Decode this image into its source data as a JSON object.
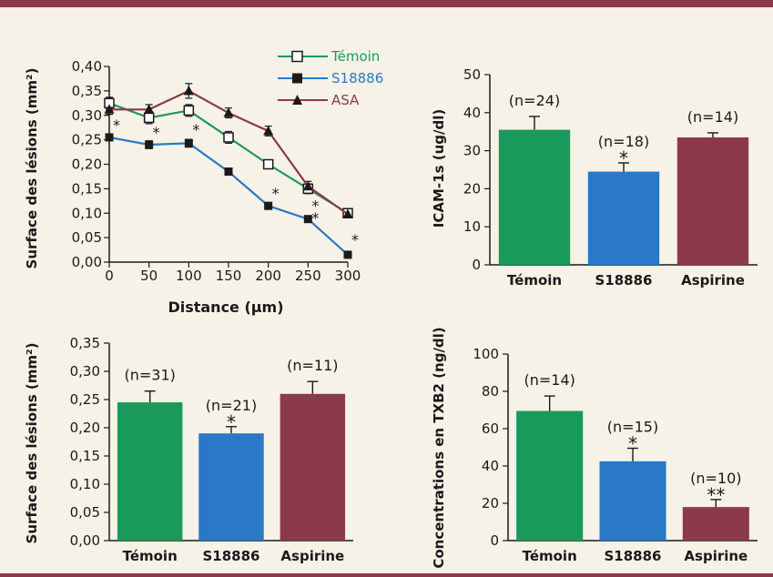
{
  "colors": {
    "background": "#f7f2e7",
    "border": "#8b3a4c",
    "temoin": "#1a9a5a",
    "s18886": "#2a78c8",
    "asa": "#8b3a4c"
  },
  "chart_data": [
    {
      "id": "line",
      "type": "line",
      "title": "",
      "xlabel": "Distance (µm)",
      "ylabel": "Surface des lésions (mm²)",
      "xlim": [
        0,
        300
      ],
      "ylim": [
        0,
        0.4
      ],
      "xticks": [
        "0",
        "50",
        "100",
        "150",
        "200",
        "250",
        "300"
      ],
      "yticks": [
        "0,00",
        "0,05",
        "0,10",
        "0,15",
        "0,20",
        "0,25",
        "0,30",
        "0,35",
        "0,40"
      ],
      "x": [
        0,
        50,
        100,
        150,
        200,
        250,
        300
      ],
      "legend_position": "top-right",
      "series": [
        {
          "name": "Témoin",
          "marker": "open-square",
          "color": "#1a9a5a",
          "values": [
            0.325,
            0.295,
            0.31,
            0.255,
            0.2,
            0.15,
            0.1
          ],
          "err": [
            0.012,
            0.012,
            0.012,
            0.012,
            0.008,
            0.01,
            0.006
          ]
        },
        {
          "name": "S18886",
          "marker": "filled-square",
          "color": "#2a78c8",
          "values": [
            0.255,
            0.24,
            0.243,
            0.185,
            0.115,
            0.088,
            0.015
          ],
          "err": [
            0.006,
            0.008,
            0.008,
            0.006,
            0.006,
            0.003,
            0.003
          ]
        },
        {
          "name": "ASA",
          "marker": "filled-triangle",
          "color": "#8b3a4c",
          "values": [
            0.312,
            0.312,
            0.35,
            0.305,
            0.268,
            0.155,
            0.098
          ],
          "err": [
            0.01,
            0.01,
            0.015,
            0.01,
            0.01,
            0.01,
            0.006
          ]
        }
      ],
      "annotations": [
        {
          "x": 0,
          "y": 0.285,
          "text": "*"
        },
        {
          "x": 50,
          "y": 0.27,
          "text": "*"
        },
        {
          "x": 100,
          "y": 0.275,
          "text": "*"
        },
        {
          "x": 200,
          "y": 0.145,
          "text": "*"
        },
        {
          "x": 250,
          "y": 0.12,
          "text": "*"
        },
        {
          "x": 250,
          "y": 0.095,
          "text": "*"
        },
        {
          "x": 300,
          "y": 0.05,
          "text": "*"
        }
      ]
    },
    {
      "id": "icam",
      "type": "bar",
      "title": "",
      "xlabel": "",
      "ylabel": "ICAM-1s (ug/dl)",
      "ylim": [
        0,
        50
      ],
      "yticks": [
        "0",
        "10",
        "20",
        "30",
        "40",
        "50"
      ],
      "categories": [
        "Témoin",
        "S18886",
        "Aspirine"
      ],
      "values": [
        35.5,
        24.5,
        33.5
      ],
      "err": [
        3.5,
        2.3,
        1.2
      ],
      "labels": [
        "(n=24)",
        "(n=18)",
        "(n=14)"
      ],
      "stars": [
        "",
        "*",
        ""
      ]
    },
    {
      "id": "surface",
      "type": "bar",
      "title": "",
      "xlabel": "",
      "ylabel": "Surface des lésions (mm²)",
      "ylim": [
        0,
        0.35
      ],
      "yticks": [
        "0,00",
        "0,05",
        "0,10",
        "0,15",
        "0,20",
        "0,25",
        "0,30",
        "0,35"
      ],
      "categories": [
        "Témoin",
        "S18886",
        "Aspirine"
      ],
      "values": [
        0.245,
        0.19,
        0.26
      ],
      "err": [
        0.02,
        0.012,
        0.022
      ],
      "labels": [
        "(n=31)",
        "(n=21)",
        "(n=11)"
      ],
      "stars": [
        "",
        "*",
        ""
      ]
    },
    {
      "id": "txb",
      "type": "bar",
      "title": "",
      "xlabel": "",
      "ylabel": "Concentrations en TXB2 (ng/dl)",
      "ylim": [
        0,
        100
      ],
      "yticks": [
        "0",
        "20",
        "40",
        "60",
        "80",
        "100"
      ],
      "categories": [
        "Témoin",
        "S18886",
        "Aspirine"
      ],
      "values": [
        69.5,
        42.5,
        18
      ],
      "err": [
        8,
        7,
        4
      ],
      "labels": [
        "(n=14)",
        "(n=15)",
        "(n=10)"
      ],
      "stars": [
        "",
        "*",
        "**"
      ]
    }
  ]
}
